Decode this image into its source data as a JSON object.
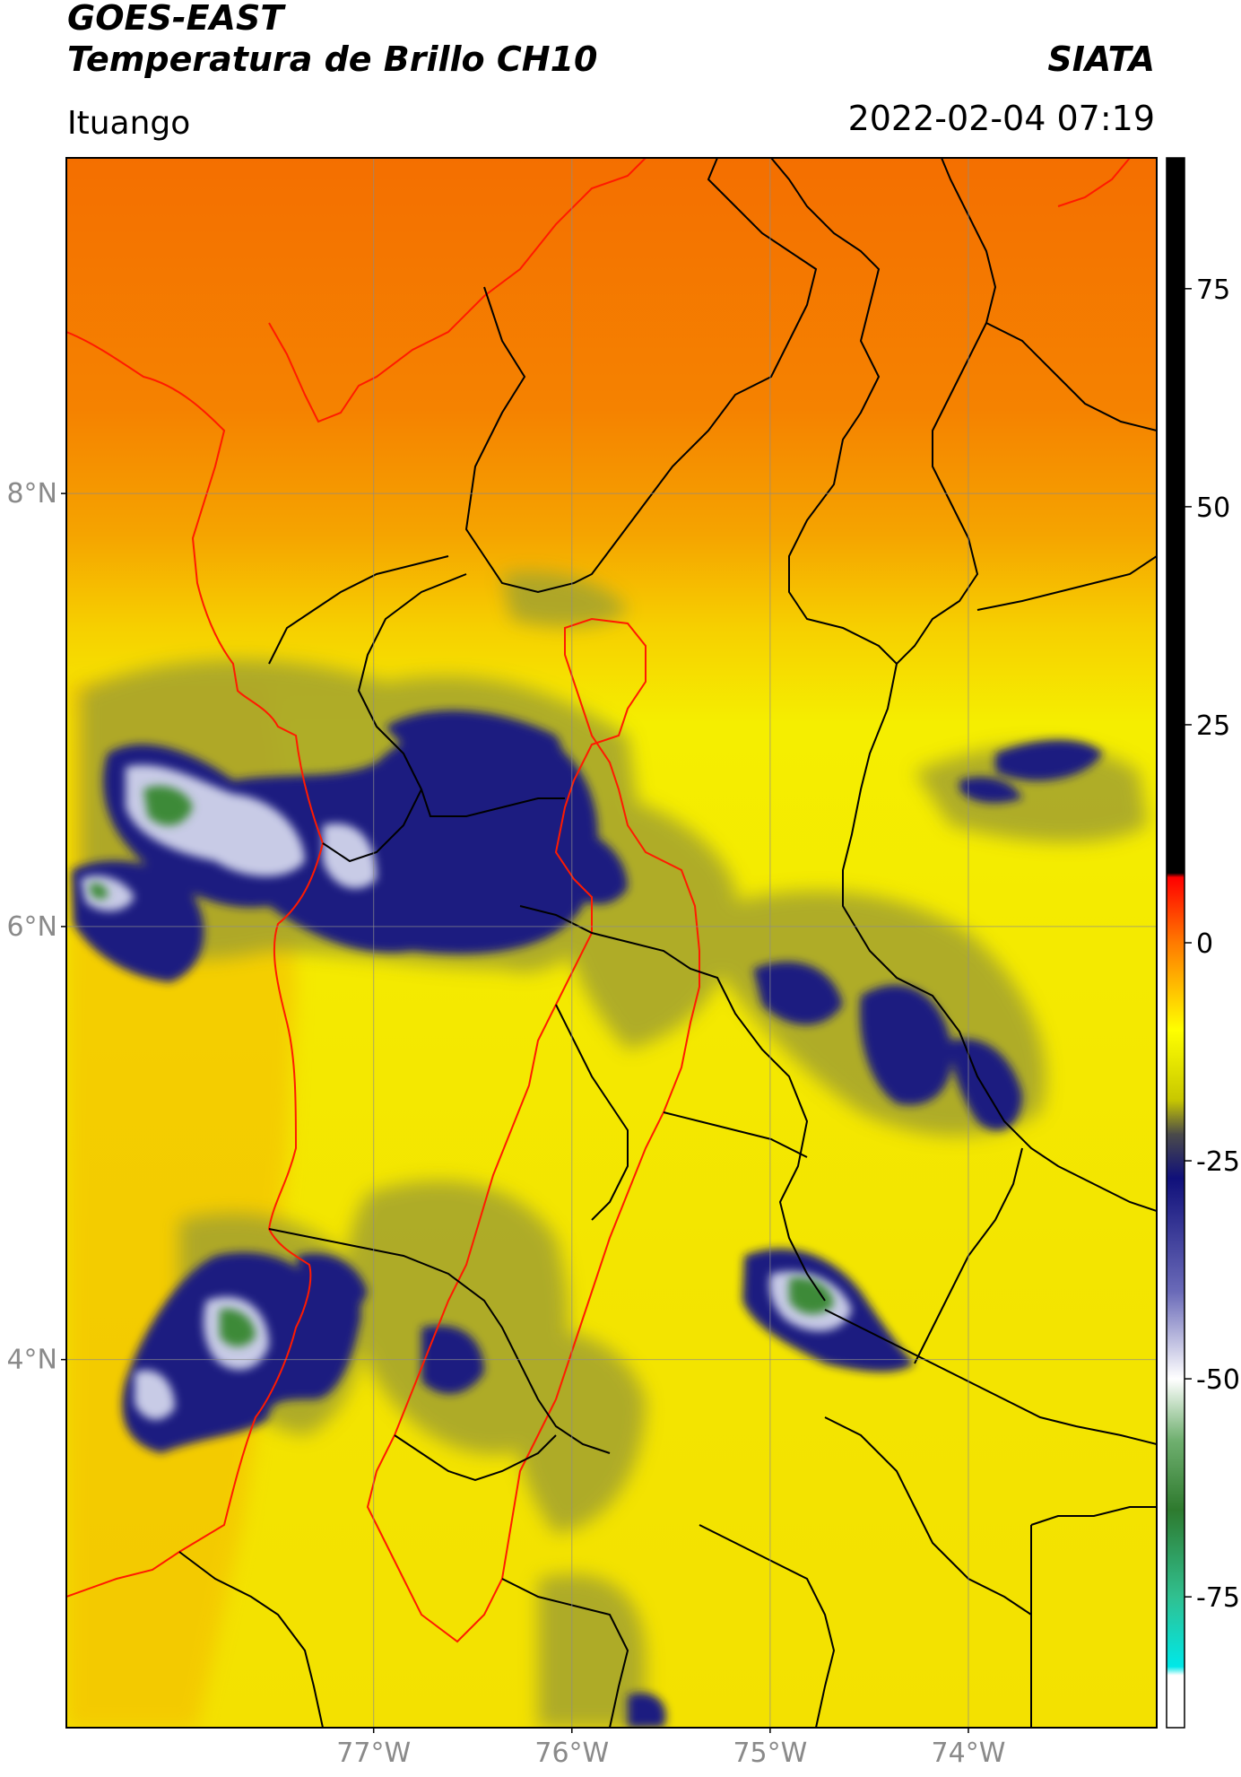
{
  "header": {
    "satellite": "GOES-EAST",
    "product": "Temperatura de Brillo CH10",
    "brand": "SIATA",
    "location": "Ituango",
    "timestamp": "2022-02-04 07:19"
  },
  "map": {
    "lat_range": [
      2.3,
      9.55
    ],
    "lon_range": [
      -78.55,
      -73.05
    ],
    "lat_ticks": [
      {
        "value": 8,
        "label": "8°N"
      },
      {
        "value": 6,
        "label": "6°N"
      },
      {
        "value": 4,
        "label": "4°N"
      }
    ],
    "lon_ticks": [
      {
        "value": -77,
        "label": "77°W"
      },
      {
        "value": -76,
        "label": "76°W"
      },
      {
        "value": -75,
        "label": "75°W"
      },
      {
        "value": -74,
        "label": "74°W"
      }
    ],
    "grid": true,
    "background_color": "#f5a800",
    "colors": {
      "north_orange": "#f47d00",
      "warm_yellow": "#f5f000",
      "olive": "#9a9a30",
      "navy": "#15157a",
      "light_blue_white": "#eef0f8",
      "green": "#3f8a36",
      "border_black": "#000000",
      "border_red": "#ff0000"
    }
  },
  "colorbar": {
    "range": [
      -90,
      90
    ],
    "ticks": [
      {
        "value": 75,
        "label": "75"
      },
      {
        "value": 50,
        "label": "50"
      },
      {
        "value": 25,
        "label": "25"
      },
      {
        "value": 0,
        "label": "0"
      },
      {
        "value": -25,
        "label": "-25"
      },
      {
        "value": -50,
        "label": "-50"
      },
      {
        "value": -75,
        "label": "-75"
      }
    ],
    "stops": [
      {
        "value": 90,
        "color": "#000000"
      },
      {
        "value": 8,
        "color": "#000000"
      },
      {
        "value": 7.5,
        "color": "#ff0000"
      },
      {
        "value": 0,
        "color": "#ff7a00"
      },
      {
        "value": -10,
        "color": "#ffff00"
      },
      {
        "value": -18,
        "color": "#c8c800"
      },
      {
        "value": -22,
        "color": "#4a4a4a"
      },
      {
        "value": -27,
        "color": "#10107a"
      },
      {
        "value": -40,
        "color": "#6a6ab8"
      },
      {
        "value": -50,
        "color": "#ffffff"
      },
      {
        "value": -57,
        "color": "#70b070"
      },
      {
        "value": -65,
        "color": "#2e7a2e"
      },
      {
        "value": -75,
        "color": "#30c090"
      },
      {
        "value": -83,
        "color": "#00e8e8"
      },
      {
        "value": -84,
        "color": "#ffffff"
      },
      {
        "value": -90,
        "color": "#ffffff"
      }
    ]
  }
}
